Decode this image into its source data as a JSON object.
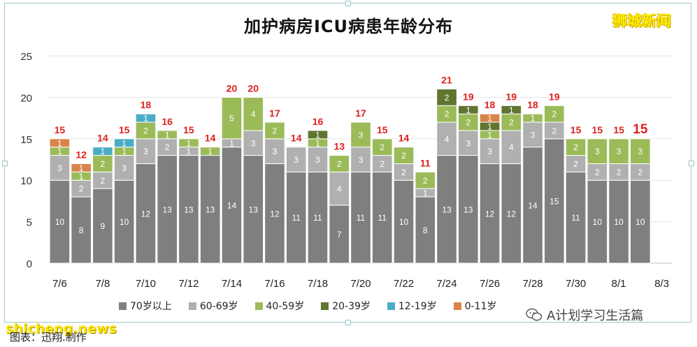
{
  "watermark": "狮城新闻",
  "footer": {
    "site": "shicheng.news",
    "source": "图表：迅翔.制作",
    "wechat_label": "A计划学习生活篇"
  },
  "colors": {
    "70+": "#7f7f7f",
    "60-69": "#b0b0b0",
    "40-59": "#9bbb59",
    "20-39": "#5f7530",
    "12-19": "#4bacc6",
    "0-11": "#d9844a",
    "total_label": "#e02020"
  },
  "chart_data": {
    "type": "bar",
    "stacked": true,
    "title": "加护病房ICU病患年龄分布",
    "xlabel": "",
    "ylabel": "",
    "ylim": [
      0,
      25
    ],
    "yticks": [
      0,
      5,
      10,
      15,
      20,
      25
    ],
    "grid": true,
    "legend_position": "bottom",
    "categories": [
      "7/6",
      "7/7",
      "7/8",
      "7/9",
      "7/10",
      "7/11",
      "7/12",
      "7/13",
      "7/14",
      "7/15",
      "7/16",
      "7/17",
      "7/18",
      "7/19",
      "7/20",
      "7/21",
      "7/22",
      "7/23",
      "7/24",
      "7/25",
      "7/26",
      "7/27",
      "7/28",
      "7/29",
      "7/30",
      "7/31",
      "8/1",
      "8/2",
      "8/3"
    ],
    "x_tick_labels": [
      "7/6",
      "7/8",
      "7/10",
      "7/12",
      "7/14",
      "7/16",
      "7/18",
      "7/20",
      "7/22",
      "7/24",
      "7/26",
      "7/28",
      "7/30",
      "8/1",
      "8/3"
    ],
    "series": [
      {
        "name": "70岁以上",
        "key": "70+",
        "values": [
          10,
          8,
          9,
          10,
          12,
          13,
          13,
          13,
          14,
          13,
          12,
          11,
          11,
          7,
          11,
          11,
          10,
          8,
          13,
          13,
          12,
          12,
          14,
          15,
          11,
          10,
          10,
          10,
          null
        ]
      },
      {
        "name": "60-69岁",
        "key": "60-69",
        "values": [
          3,
          2,
          2,
          3,
          3,
          2,
          1,
          0,
          1,
          3,
          3,
          3,
          3,
          4,
          3,
          2,
          2,
          1,
          4,
          3,
          3,
          4,
          3,
          2,
          2,
          2,
          2,
          2,
          null
        ]
      },
      {
        "name": "40-59岁",
        "key": "40-59",
        "values": [
          1,
          1,
          2,
          1,
          2,
          1,
          1,
          1,
          5,
          4,
          2,
          0,
          1,
          2,
          3,
          2,
          2,
          2,
          2,
          2,
          1,
          2,
          1,
          2,
          2,
          3,
          3,
          3,
          null
        ]
      },
      {
        "name": "20-39岁",
        "key": "20-39",
        "values": [
          0,
          0,
          0,
          0,
          0,
          0,
          0,
          0,
          0,
          0,
          0,
          0,
          1,
          0,
          0,
          0,
          0,
          0,
          2,
          1,
          1,
          1,
          0,
          0,
          0,
          0,
          0,
          0,
          null
        ]
      },
      {
        "name": "12-19岁",
        "key": "12-19",
        "values": [
          0,
          0,
          1,
          1,
          1,
          0,
          0,
          0,
          0,
          0,
          0,
          0,
          0,
          0,
          0,
          0,
          0,
          0,
          0,
          0,
          0,
          0,
          0,
          0,
          0,
          0,
          0,
          0,
          null
        ]
      },
      {
        "name": "0-11岁",
        "key": "0-11",
        "values": [
          1,
          1,
          0,
          0,
          0,
          0,
          0,
          0,
          0,
          0,
          0,
          0,
          0,
          0,
          0,
          0,
          0,
          0,
          0,
          0,
          1,
          0,
          0,
          0,
          0,
          0,
          0,
          0,
          null
        ]
      }
    ],
    "totals": [
      15,
      12,
      14,
      15,
      18,
      16,
      15,
      14,
      20,
      20,
      17,
      14,
      16,
      13,
      17,
      15,
      14,
      11,
      21,
      19,
      18,
      19,
      18,
      19,
      15,
      15,
      15,
      15,
      null
    ],
    "highlight_total_index": 27
  }
}
